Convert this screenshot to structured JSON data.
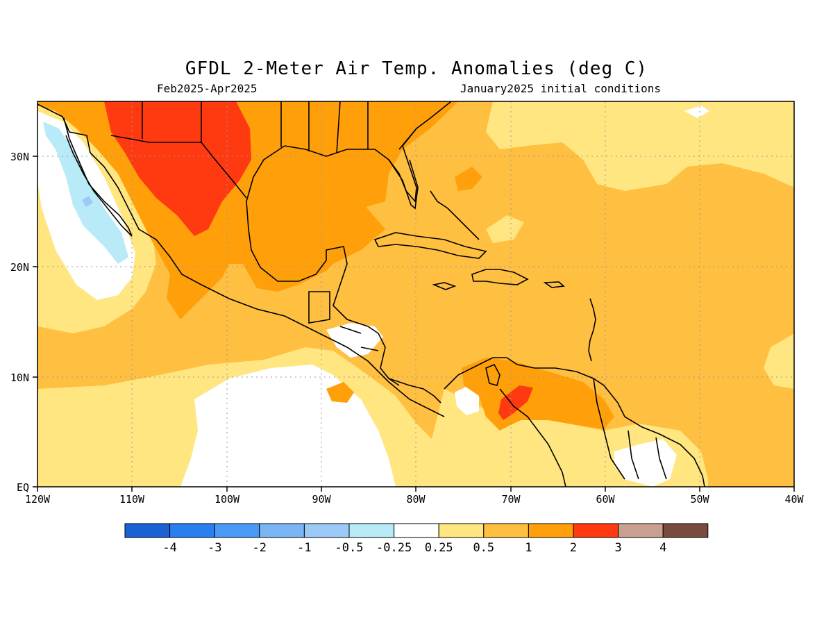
{
  "title": "GFDL 2-Meter Air Temp. Anomalies (deg C)",
  "period": "Feb2025-Apr2025",
  "initial_conditions": "January2025 initial conditions",
  "map": {
    "lat_labels": [
      "30N",
      "20N",
      "10N",
      "EQ"
    ],
    "lon_labels": [
      "120W",
      "110W",
      "100W",
      "90W",
      "80W",
      "70W",
      "60W",
      "50W",
      "40W"
    ]
  },
  "legend": {
    "labels": [
      "-4",
      "-3",
      "-2",
      "-1",
      "-0.5",
      "-0.25",
      "0.25",
      "0.5",
      "1",
      "2",
      "3",
      "4"
    ],
    "colors": [
      "#1a61d6",
      "#2a7ff0",
      "#4a9af5",
      "#7ab5f5",
      "#9ccaf7",
      "#b8ebf7",
      "#ffffff",
      "#ffe680",
      "#ffbf40",
      "#ff9f0a",
      "#ff3a10",
      "#c9a090",
      "#7a4a40"
    ]
  },
  "colors": {
    "background": "#ffffff",
    "ocean_base": "#ffbf40",
    "light_band": "#ffe680",
    "warm": "#ff9f0a",
    "hot": "#ff3a10",
    "cool": "#b8ebf7",
    "coast": "#000000"
  }
}
